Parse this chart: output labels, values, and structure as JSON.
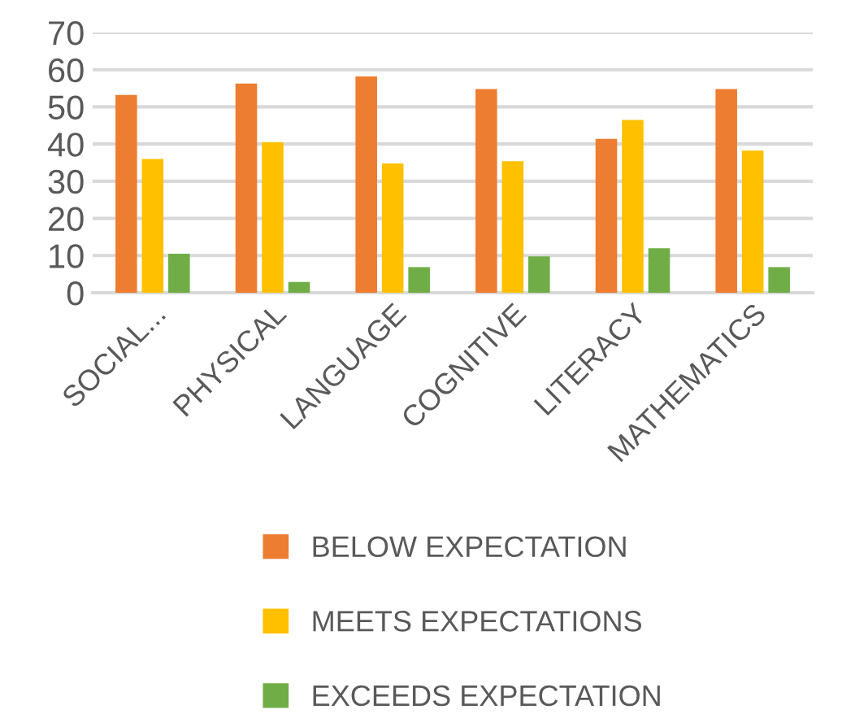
{
  "chart_data": {
    "type": "bar",
    "categories": [
      "SOCIAL...",
      "PHYSICAL",
      "LANGUAGE",
      "COGNITIVE",
      "LITERACY",
      "MATHEMATICS"
    ],
    "series": [
      {
        "name": "BELOW EXPECTATION",
        "color": "#ed7d31",
        "values": [
          53.2,
          56.3,
          58.2,
          54.8,
          41.4,
          54.8
        ]
      },
      {
        "name": "MEETS EXPECTATIONS",
        "color": "#ffc000",
        "values": [
          36.0,
          40.5,
          34.8,
          35.4,
          46.5,
          38.2
        ]
      },
      {
        "name": "EXCEEDS EXPECTATION",
        "color": "#70ad47",
        "values": [
          10.5,
          2.9,
          6.9,
          9.8,
          12.0,
          6.9
        ]
      }
    ],
    "ylim": [
      0,
      70
    ],
    "yticks": [
      0,
      10,
      20,
      30,
      40,
      50,
      60,
      70
    ],
    "grid": "y",
    "legend": "bottom"
  }
}
